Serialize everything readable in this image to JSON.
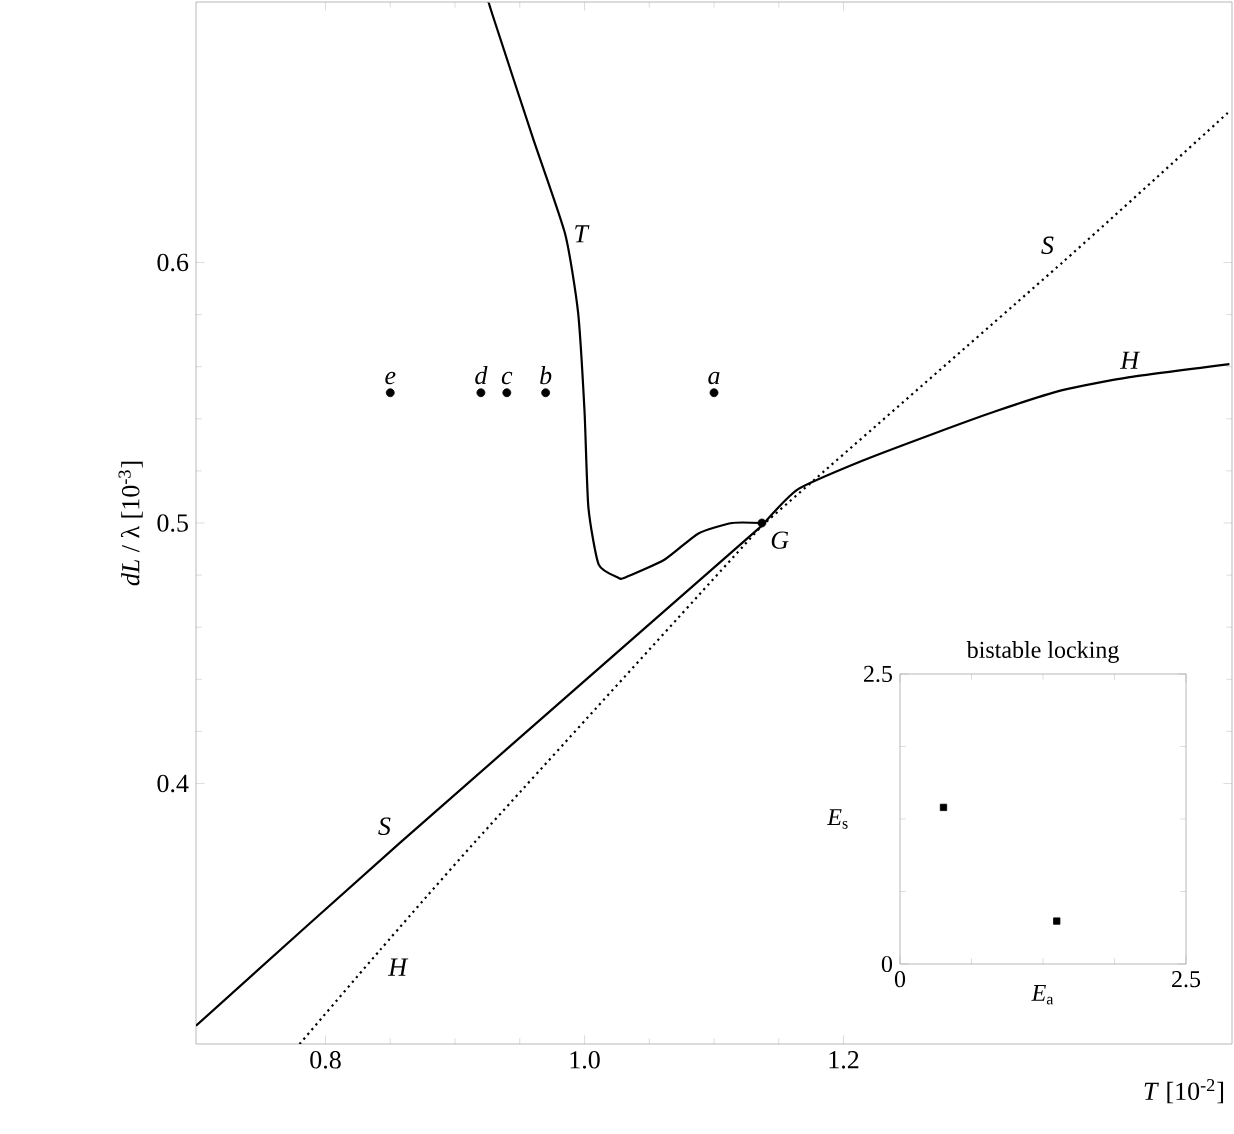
{
  "chart_data": [
    {
      "type": "line",
      "xlabel": "*T* [10$^{-2}$]",
      "ylabel": "*dL* / λ  [10$^{-3}$]",
      "xlim": [
        0.7,
        1.5
      ],
      "ylim": [
        0.3,
        0.7
      ],
      "xticks": [
        0.8,
        {
          "value": 1.0,
          "label": "1.0"
        },
        1.2
      ],
      "yticks": [
        0.4,
        0.5,
        0.6
      ],
      "series": [
        {
          "name": "T",
          "type": "line",
          "color": "#000000",
          "line_style": "solid",
          "x": [
            0.926,
            0.929,
            0.96,
            0.985,
            0.995,
            1.0,
            1.003,
            1.011,
            1.026,
            1.031,
            1.062,
            1.088,
            1.114,
            1.137
          ],
          "values": [
            0.7,
            0.695,
            0.648,
            0.611,
            0.581,
            0.543,
            0.506,
            0.484,
            0.479,
            0.479,
            0.486,
            0.496,
            0.5,
            0.5
          ]
        },
        {
          "name": "S",
          "type": "line",
          "color": "#000000",
          "line_style": "solid",
          "x": [
            0.7,
            0.857,
            1.137
          ],
          "values": [
            0.307,
            0.377,
            0.499
          ]
        },
        {
          "name": "H",
          "type": "line",
          "color": "#000000",
          "line_style": "solid",
          "x": [
            1.137,
            1.165,
            1.215,
            1.268,
            1.318,
            1.369,
            1.421,
            1.498
          ],
          "values": [
            0.499,
            0.513,
            0.524,
            0.534,
            0.543,
            0.551,
            0.556,
            0.561
          ]
        },
        {
          "name": "H",
          "type": "line",
          "color": "#000000",
          "line_style": "dotted",
          "x": [
            0.78,
            0.842,
            0.918,
            1.137
          ],
          "values": [
            0.3,
            0.336,
            0.379,
            0.499
          ]
        },
        {
          "name": "S",
          "type": "line",
          "color": "#000000",
          "line_style": "dotted",
          "x": [
            1.137,
            1.369,
            1.498
          ],
          "values": [
            0.499,
            0.6,
            0.658
          ]
        },
        {
          "name": "e",
          "type": "scatter",
          "color": "#000000",
          "marker": "circle",
          "x": [
            0.85
          ],
          "values": [
            0.55
          ]
        },
        {
          "name": "d",
          "type": "scatter",
          "color": "#000000",
          "marker": "circle",
          "x": [
            0.92
          ],
          "values": [
            0.55
          ]
        },
        {
          "name": "c",
          "type": "scatter",
          "color": "#000000",
          "marker": "circle",
          "x": [
            0.94
          ],
          "values": [
            0.55
          ]
        },
        {
          "name": "b",
          "type": "scatter",
          "color": "#000000",
          "marker": "circle",
          "x": [
            0.97
          ],
          "values": [
            0.55
          ]
        },
        {
          "name": "a",
          "type": "scatter",
          "color": "#000000",
          "marker": "circle",
          "x": [
            1.1
          ],
          "values": [
            0.55
          ]
        },
        {
          "name": "G",
          "type": "scatter",
          "color": "#000000",
          "marker": "circle",
          "x": [
            1.137
          ],
          "values": [
            0.5
          ]
        }
      ]
    },
    {
      "type": "scatter",
      "title": "bistable locking",
      "xlabel": "*E*$_{a}$",
      "ylabel": "*E*$_{s}$",
      "xlim": [
        0,
        2.5
      ],
      "ylim": [
        0,
        2.5
      ],
      "xticks": [
        0,
        2.5
      ],
      "yticks": [
        0,
        2.5
      ],
      "marker": "square",
      "series": [
        {
          "color": "#000000",
          "x": [
            0.38,
            1.37
          ],
          "values": [
            1.35,
            0.37
          ]
        }
      ]
    }
  ]
}
